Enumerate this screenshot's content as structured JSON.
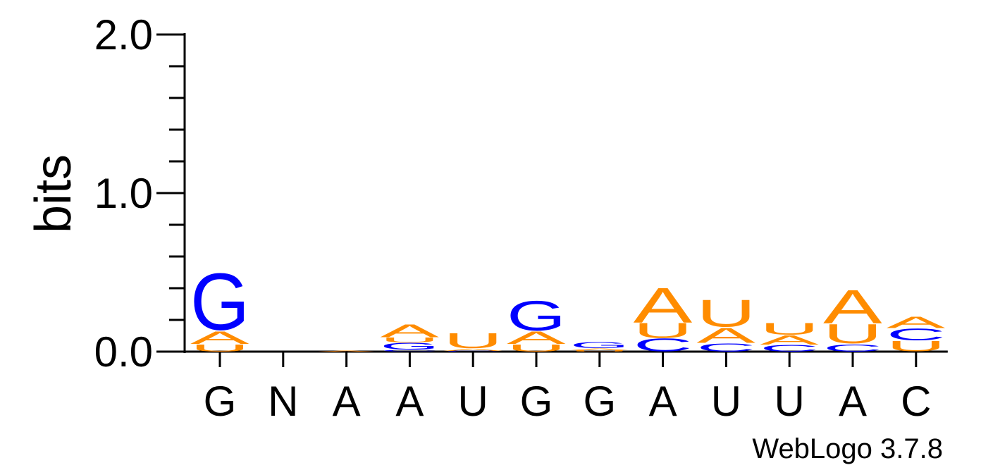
{
  "chart_data": {
    "type": "sequence-logo",
    "ylabel": "bits",
    "ylim": [
      0,
      2
    ],
    "yticks": [
      "0.0",
      "1.0",
      "2.0"
    ],
    "y_minor_step": 0.2,
    "footer": "WebLogo 3.7.8",
    "colors": {
      "G": "#0000ff",
      "C": "#0000ff",
      "A": "#ff8c00",
      "U": "#ff8c00"
    },
    "positions": [
      {
        "label": "G",
        "stack": [
          {
            "letter": "U",
            "bits": 0.05
          },
          {
            "letter": "A",
            "bits": 0.08
          },
          {
            "letter": "G",
            "bits": 0.38
          }
        ]
      },
      {
        "label": "N",
        "stack": []
      },
      {
        "label": "A",
        "stack": [
          {
            "letter": "A",
            "bits": 0.006
          }
        ]
      },
      {
        "label": "A",
        "stack": [
          {
            "letter": "C",
            "bits": 0.012
          },
          {
            "letter": "G",
            "bits": 0.045
          },
          {
            "letter": "U",
            "bits": 0.035
          },
          {
            "letter": "A",
            "bits": 0.085
          }
        ]
      },
      {
        "label": "U",
        "stack": [
          {
            "letter": "C",
            "bits": 0.005
          },
          {
            "letter": "A",
            "bits": 0.015
          },
          {
            "letter": "U",
            "bits": 0.1
          }
        ]
      },
      {
        "label": "G",
        "stack": [
          {
            "letter": "U",
            "bits": 0.05
          },
          {
            "letter": "A",
            "bits": 0.08
          },
          {
            "letter": "G",
            "bits": 0.2
          }
        ]
      },
      {
        "label": "G",
        "stack": [
          {
            "letter": "U",
            "bits": 0.01
          },
          {
            "letter": "A",
            "bits": 0.012
          },
          {
            "letter": "G",
            "bits": 0.04
          }
        ]
      },
      {
        "label": "A",
        "stack": [
          {
            "letter": "C",
            "bits": 0.085
          },
          {
            "letter": "U",
            "bits": 0.1
          },
          {
            "letter": "A",
            "bits": 0.23
          }
        ]
      },
      {
        "label": "U",
        "stack": [
          {
            "letter": "C",
            "bits": 0.055
          },
          {
            "letter": "A",
            "bits": 0.1
          },
          {
            "letter": "U",
            "bits": 0.18
          }
        ]
      },
      {
        "label": "U",
        "stack": [
          {
            "letter": "C",
            "bits": 0.045
          },
          {
            "letter": "A",
            "bits": 0.06
          },
          {
            "letter": "U",
            "bits": 0.08
          }
        ]
      },
      {
        "label": "A",
        "stack": [
          {
            "letter": "C",
            "bits": 0.05
          },
          {
            "letter": "U",
            "bits": 0.13
          },
          {
            "letter": "A",
            "bits": 0.22
          }
        ]
      },
      {
        "label": "C",
        "stack": [
          {
            "letter": "U",
            "bits": 0.07
          },
          {
            "letter": "C",
            "bits": 0.08
          },
          {
            "letter": "A",
            "bits": 0.075
          }
        ]
      }
    ]
  }
}
